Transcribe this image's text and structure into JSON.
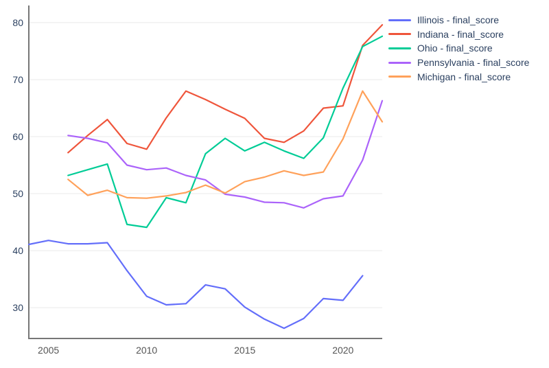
{
  "chart_data": {
    "type": "line",
    "title": "",
    "xlabel": "",
    "ylabel": "",
    "x_range": [
      2004,
      2022
    ],
    "y_range": [
      24.6,
      83.0
    ],
    "x_ticks": [
      2005,
      2010,
      2015,
      2020
    ],
    "y_ticks": [
      30,
      40,
      50,
      60,
      70,
      80
    ],
    "grid": "horizontal-only",
    "legend_position": "outside-right-top",
    "series": [
      {
        "name": "Illinois - final_score",
        "color": "#636EFA",
        "x": [
          2004,
          2005,
          2006,
          2007,
          2008,
          2009,
          2010,
          2011,
          2012,
          2013,
          2014,
          2015,
          2016,
          2017,
          2018,
          2019,
          2020,
          2021
        ],
        "y": [
          41.1,
          41.8,
          41.2,
          41.2,
          41.4,
          36.5,
          32.0,
          30.5,
          30.7,
          34.0,
          33.3,
          30.1,
          28.0,
          26.4,
          28.1,
          31.6,
          31.3,
          35.6
        ]
      },
      {
        "name": "Indiana - final_score",
        "color": "#EF553B",
        "x": [
          2006,
          2007,
          2008,
          2009,
          2010,
          2011,
          2012,
          2013,
          2014,
          2015,
          2016,
          2017,
          2018,
          2019,
          2020,
          2021,
          2022
        ],
        "y": [
          57.2,
          60.2,
          63.0,
          58.8,
          57.8,
          63.3,
          68.0,
          66.5,
          64.8,
          63.2,
          59.7,
          59.0,
          61.0,
          65.0,
          65.4,
          76.0,
          79.6
        ]
      },
      {
        "name": "Ohio - final_score",
        "color": "#00CC96",
        "x": [
          2006,
          2007,
          2008,
          2009,
          2010,
          2011,
          2012,
          2013,
          2014,
          2015,
          2016,
          2017,
          2018,
          2019,
          2020,
          2021,
          2022
        ],
        "y": [
          53.2,
          54.2,
          55.2,
          44.6,
          44.1,
          49.3,
          48.4,
          57.0,
          59.7,
          57.5,
          59.0,
          57.5,
          56.2,
          59.8,
          68.5,
          75.8,
          77.6
        ]
      },
      {
        "name": "Pennsylvania - final_score",
        "color": "#AB63FA",
        "x": [
          2006,
          2007,
          2008,
          2009,
          2010,
          2011,
          2012,
          2013,
          2014,
          2015,
          2016,
          2017,
          2018,
          2019,
          2020,
          2021,
          2022
        ],
        "y": [
          60.2,
          59.7,
          58.9,
          55.0,
          54.2,
          54.5,
          53.2,
          52.4,
          49.9,
          49.4,
          48.5,
          48.4,
          47.5,
          49.1,
          49.6,
          55.9,
          66.3
        ]
      },
      {
        "name": "Michigan - final_score",
        "color": "#FFA15A",
        "x": [
          2006,
          2007,
          2008,
          2009,
          2010,
          2011,
          2012,
          2013,
          2014,
          2015,
          2016,
          2017,
          2018,
          2019,
          2020,
          2021,
          2022
        ],
        "y": [
          52.5,
          49.7,
          50.6,
          49.3,
          49.2,
          49.6,
          50.2,
          51.5,
          50.1,
          52.1,
          52.9,
          54.0,
          53.2,
          53.8,
          59.6,
          68.0,
          62.6
        ]
      }
    ]
  },
  "style_colors": {
    "background": "#ffffff",
    "axis_line": "#767676",
    "grid_line": "#e9e9e9",
    "y_tick_text": "#2a3f5f",
    "x_tick_text": "#555555",
    "legend_text": "#2a3f5f"
  }
}
